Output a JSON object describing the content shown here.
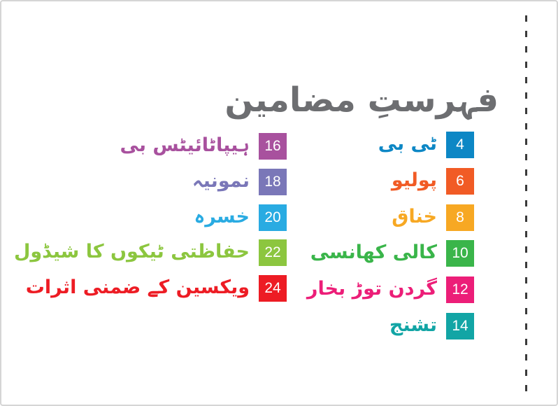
{
  "page": {
    "title": "فہرستِ مضامین"
  },
  "toc": {
    "column_right": [
      {
        "page": "4",
        "label": "ٹی بی",
        "color": "#0d87c5"
      },
      {
        "page": "6",
        "label": "پولیو",
        "color": "#f15b25"
      },
      {
        "page": "8",
        "label": "خناق",
        "color": "#f7a823"
      },
      {
        "page": "10",
        "label": "کالی کھانسی",
        "color": "#3ab54a"
      },
      {
        "page": "12",
        "label": "گردن توڑ بخار",
        "color": "#ec1e78"
      },
      {
        "page": "14",
        "label": "تشنج",
        "color": "#12a5a5"
      }
    ],
    "column_left": [
      {
        "page": "16",
        "label": "ہیپاٹائیٹس بی",
        "color": "#a8519e"
      },
      {
        "page": "18",
        "label": "نمونیہ",
        "color": "#7a77b8"
      },
      {
        "page": "20",
        "label": "خسرہ",
        "color": "#29abe2"
      },
      {
        "page": "22",
        "label": "حفاظتی ٹیکوں کا شیڈول",
        "color": "#8cc63f"
      },
      {
        "page": "24",
        "label": "ویکسین کے ضمنی اثرات",
        "color": "#ed1c24"
      }
    ]
  },
  "colors": {
    "title_gray": "#6d6e71",
    "page_border": "#d5d5d5",
    "cut_line": "#3a3a3a"
  }
}
